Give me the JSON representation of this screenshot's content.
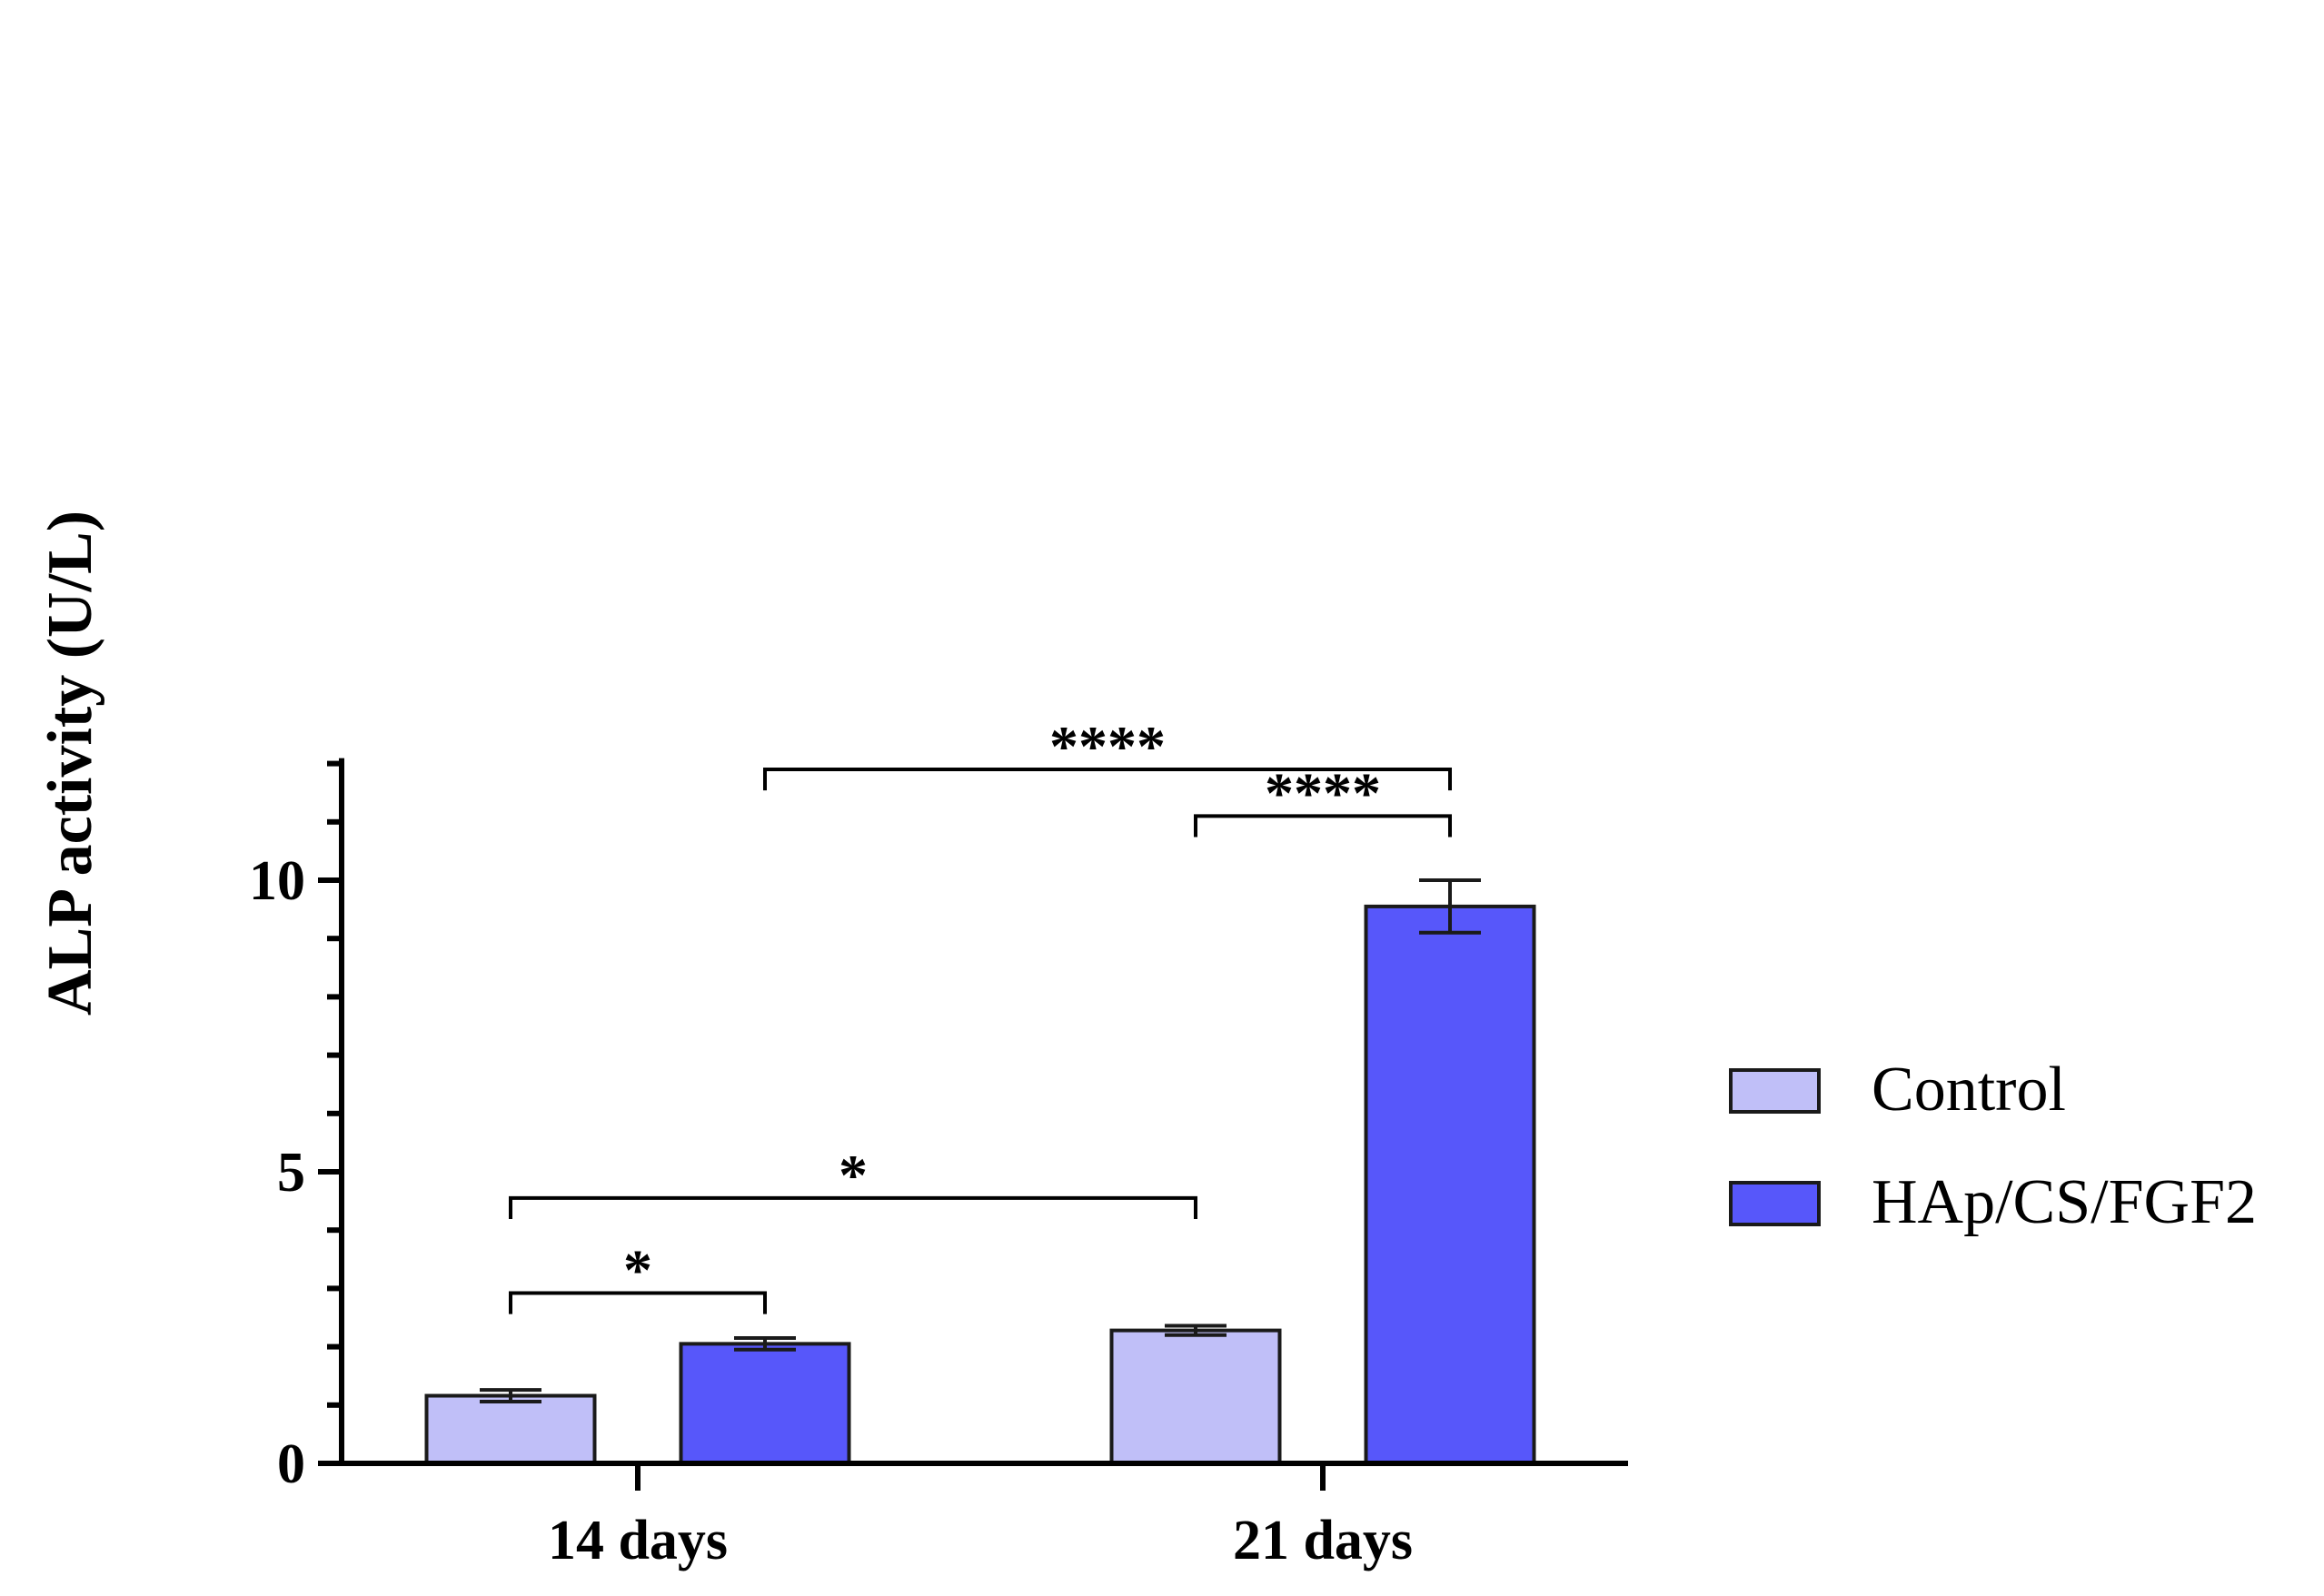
{
  "chart_data": {
    "type": "bar",
    "title": "",
    "xlabel": "",
    "ylabel": "ALP activity (U/L)",
    "ylim": [
      0,
      12
    ],
    "yticks": [
      0,
      5,
      10
    ],
    "ytick_labels": [
      "0",
      "5",
      "10"
    ],
    "categories": [
      "14 days",
      "21 days"
    ],
    "series": [
      {
        "name": "Control",
        "color": "#c0bff8",
        "values": [
          1.16,
          2.28
        ],
        "errors": [
          0.1,
          0.08
        ]
      },
      {
        "name": "HAp/CS/FGF2",
        "color": "#5757fa",
        "values": [
          2.05,
          9.55
        ],
        "errors": [
          0.1,
          0.45
        ]
      }
    ],
    "legend_position": "right",
    "grid": false,
    "annotations": [
      {
        "label": "*",
        "from": [
          0,
          0
        ],
        "to": [
          0,
          1
        ],
        "y": 2.92,
        "drop_left": 0.36,
        "drop_right": 0.36
      },
      {
        "label": "*",
        "from": [
          0,
          0
        ],
        "to": [
          1,
          0
        ],
        "y": 4.55,
        "drop_left": 0.36,
        "drop_right": 0.36
      },
      {
        "label": "****",
        "from": [
          1,
          0
        ],
        "to": [
          1,
          1
        ],
        "y": 11.1,
        "drop_left": 0.36,
        "drop_right": 0.36
      },
      {
        "label": "****",
        "from": [
          0,
          1
        ],
        "to": [
          1,
          1
        ],
        "y": 11.9,
        "drop_left": 0.36,
        "drop_right": 0.36
      }
    ]
  }
}
